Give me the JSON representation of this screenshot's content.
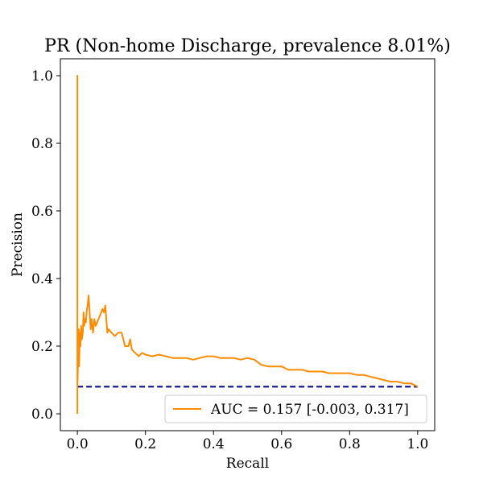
{
  "chart_data": {
    "type": "line",
    "title": "PR (Non-home Discharge, prevalence 8.01%)",
    "xlabel": "Recall",
    "ylabel": "Precision",
    "xlim": [
      -0.05,
      1.05
    ],
    "ylim": [
      -0.05,
      1.05
    ],
    "xticks": [
      0.0,
      0.2,
      0.4,
      0.6,
      0.8,
      1.0
    ],
    "xtick_labels": [
      "0.0",
      "0.2",
      "0.4",
      "0.6",
      "0.8",
      "1.0"
    ],
    "yticks": [
      0.0,
      0.2,
      0.4,
      0.6,
      0.8,
      1.0
    ],
    "ytick_labels": [
      "0.0",
      "0.2",
      "0.4",
      "0.6",
      "0.8",
      "1.0"
    ],
    "grid": false,
    "legend_position": "lower-right",
    "series": [
      {
        "name": "AUC = 0.157 [-0.003, 0.317]",
        "color": "#ff8c00",
        "style": "solid",
        "x": [
          0.0,
          0.0,
          0.0,
          0.002,
          0.004,
          0.005,
          0.007,
          0.009,
          0.011,
          0.013,
          0.016,
          0.018,
          0.02,
          0.022,
          0.025,
          0.028,
          0.03,
          0.033,
          0.036,
          0.039,
          0.042,
          0.046,
          0.05,
          0.054,
          0.058,
          0.062,
          0.066,
          0.07,
          0.074,
          0.078,
          0.082,
          0.085,
          0.088,
          0.092,
          0.1,
          0.11,
          0.12,
          0.13,
          0.14,
          0.15,
          0.155,
          0.16,
          0.17,
          0.18,
          0.19,
          0.2,
          0.22,
          0.24,
          0.26,
          0.28,
          0.3,
          0.32,
          0.34,
          0.36,
          0.38,
          0.4,
          0.42,
          0.44,
          0.46,
          0.48,
          0.5,
          0.52,
          0.54,
          0.56,
          0.58,
          0.6,
          0.62,
          0.64,
          0.66,
          0.68,
          0.7,
          0.72,
          0.74,
          0.76,
          0.78,
          0.8,
          0.82,
          0.84,
          0.86,
          0.88,
          0.9,
          0.92,
          0.94,
          0.96,
          0.98,
          1.0
        ],
        "y": [
          0.0,
          1.0,
          0.08,
          0.16,
          0.25,
          0.14,
          0.24,
          0.2,
          0.26,
          0.22,
          0.24,
          0.3,
          0.26,
          0.28,
          0.27,
          0.31,
          0.32,
          0.35,
          0.3,
          0.25,
          0.28,
          0.24,
          0.28,
          0.26,
          0.27,
          0.28,
          0.29,
          0.3,
          0.31,
          0.3,
          0.32,
          0.28,
          0.24,
          0.25,
          0.24,
          0.23,
          0.24,
          0.24,
          0.2,
          0.2,
          0.22,
          0.19,
          0.18,
          0.17,
          0.18,
          0.175,
          0.17,
          0.175,
          0.17,
          0.165,
          0.165,
          0.165,
          0.16,
          0.165,
          0.17,
          0.17,
          0.165,
          0.165,
          0.165,
          0.16,
          0.165,
          0.16,
          0.145,
          0.14,
          0.14,
          0.14,
          0.13,
          0.13,
          0.13,
          0.125,
          0.125,
          0.125,
          0.12,
          0.12,
          0.12,
          0.12,
          0.115,
          0.115,
          0.11,
          0.105,
          0.1,
          0.095,
          0.095,
          0.09,
          0.09,
          0.08
        ]
      },
      {
        "name": "",
        "color": "#000080",
        "style": "dashed",
        "x": [
          0.0,
          1.0
        ],
        "y": [
          0.0801,
          0.0801
        ]
      }
    ]
  }
}
